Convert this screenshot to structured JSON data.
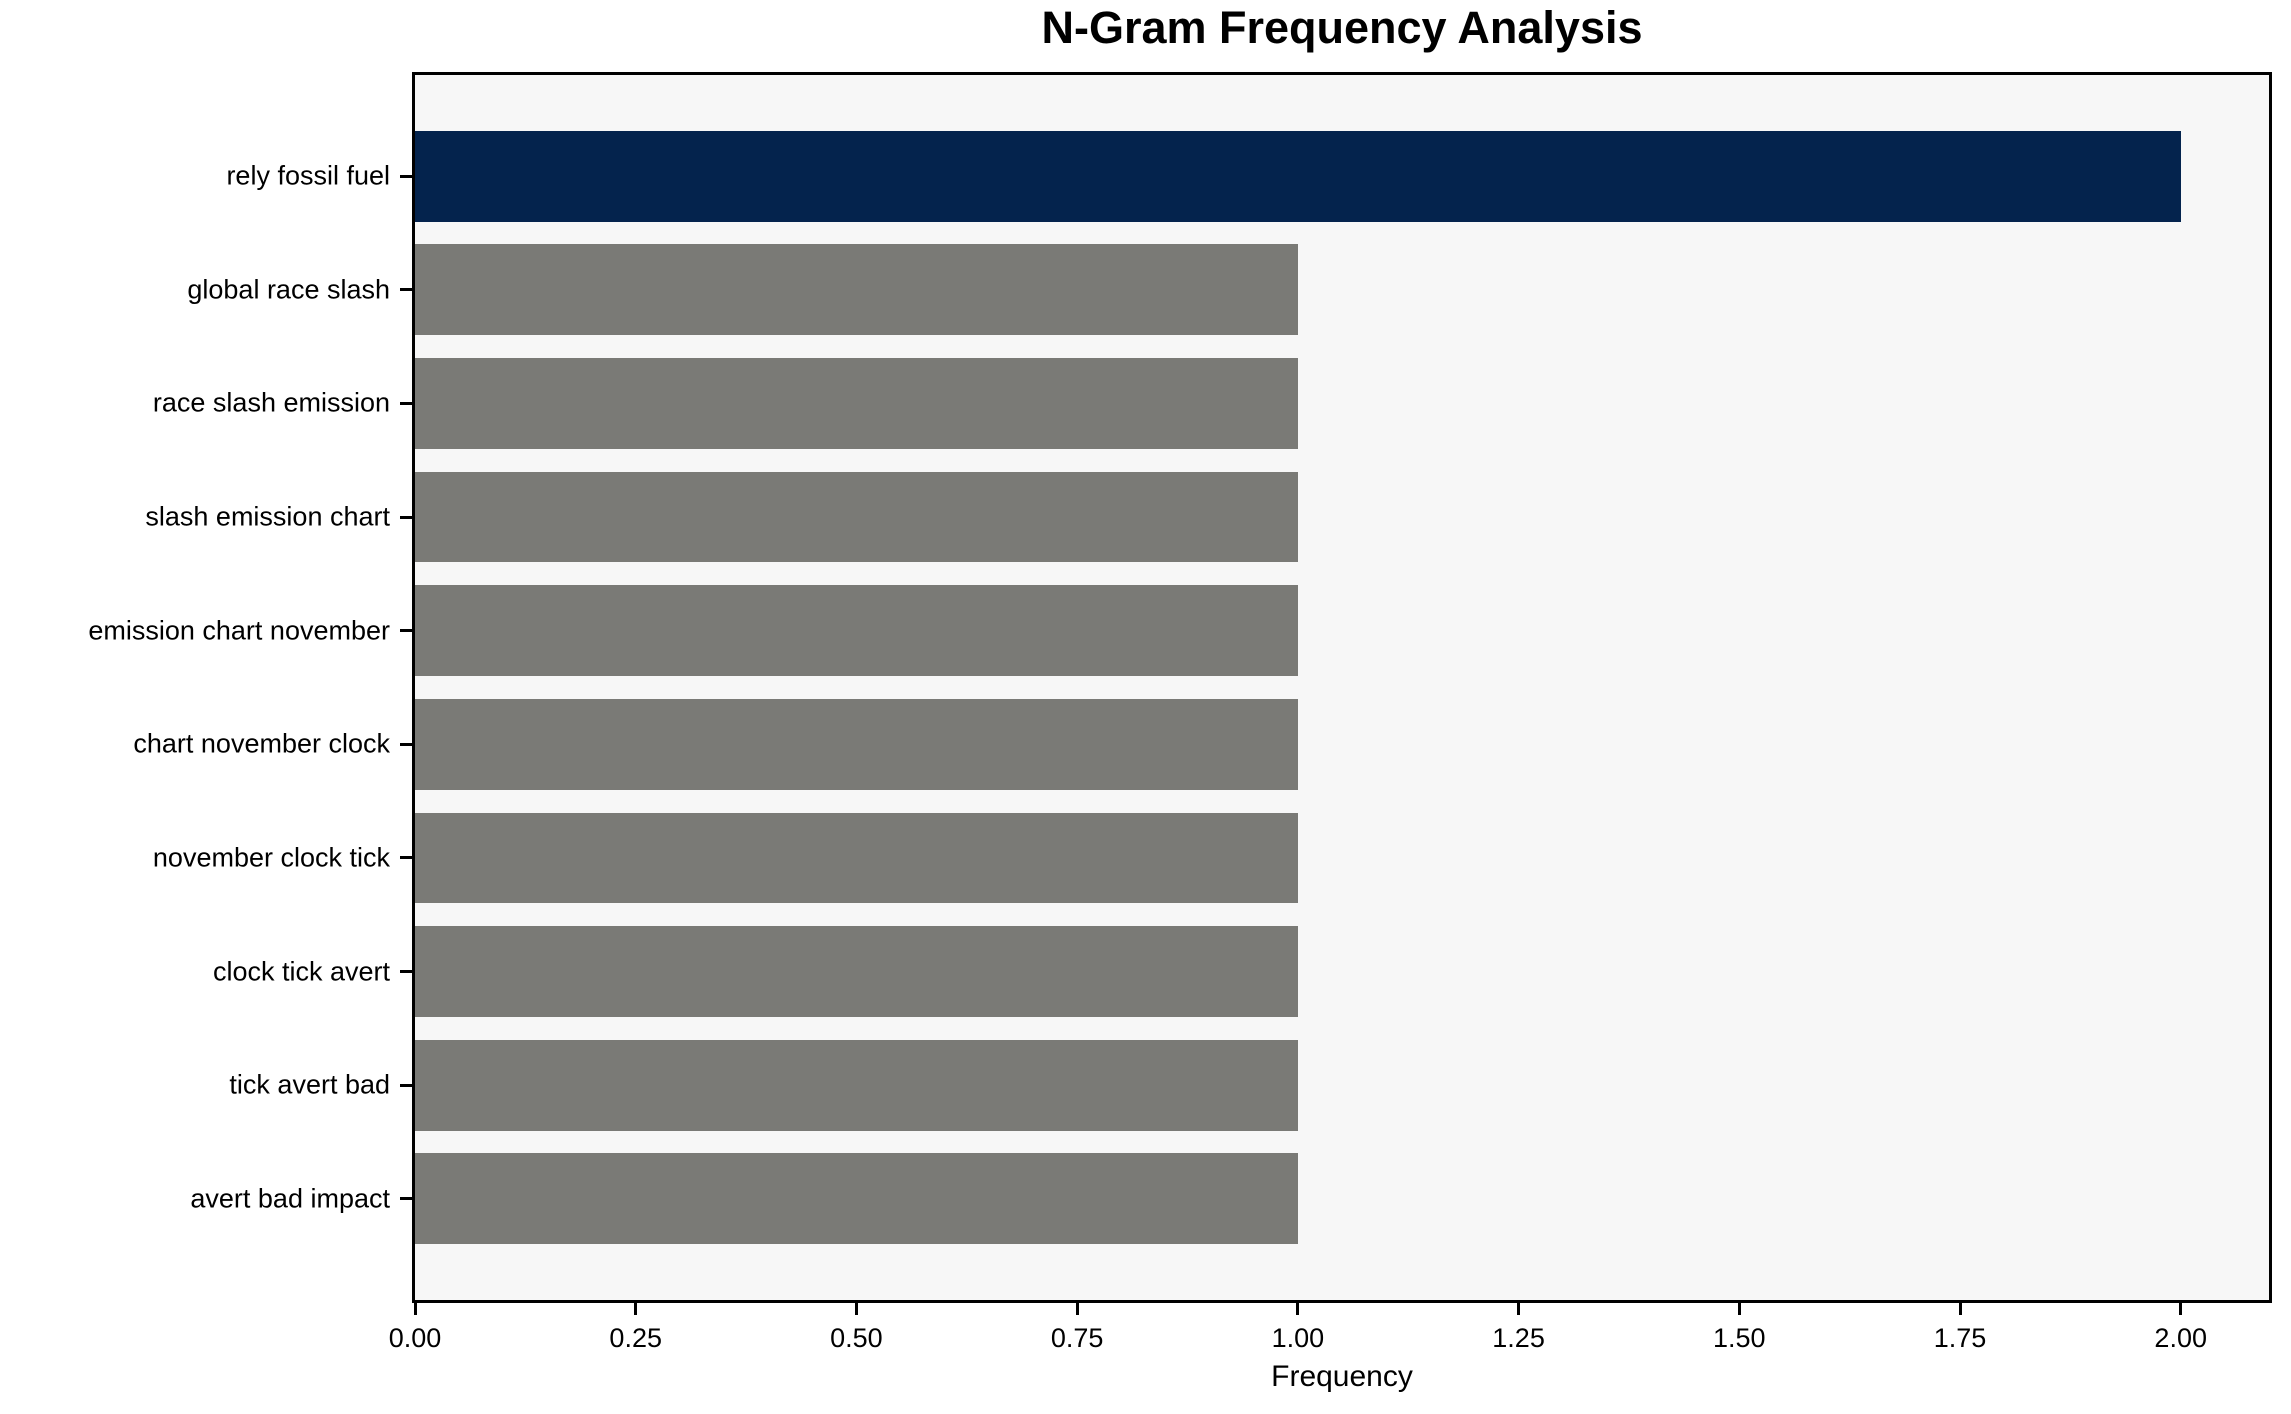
{
  "title": "N-Gram Frequency Analysis",
  "chart_data": {
    "type": "bar",
    "orientation": "horizontal",
    "title": "N-Gram Frequency Analysis",
    "xlabel": "Frequency",
    "ylabel": "",
    "categories": [
      "rely fossil fuel",
      "global race slash",
      "race slash emission",
      "slash emission chart",
      "emission chart november",
      "chart november clock",
      "november clock tick",
      "clock tick avert",
      "tick avert bad",
      "avert bad impact"
    ],
    "values": [
      2,
      1,
      1,
      1,
      1,
      1,
      1,
      1,
      1,
      1
    ],
    "bar_colors": [
      "#04234d",
      "#7a7a76",
      "#7a7a76",
      "#7a7a76",
      "#7a7a76",
      "#7a7a76",
      "#7a7a76",
      "#7a7a76",
      "#7a7a76",
      "#7a7a76"
    ],
    "xlim": [
      0,
      2.1
    ],
    "xtick_values": [
      0,
      0.25,
      0.5,
      0.75,
      1.0,
      1.25,
      1.5,
      1.75,
      2.0
    ],
    "xtick_labels": [
      "0.00",
      "0.25",
      "0.50",
      "0.75",
      "1.00",
      "1.25",
      "1.50",
      "1.75",
      "2.00"
    ],
    "grid": false,
    "legend": false,
    "colors": {
      "highlight_bar": "#04234d",
      "default_bar": "#7a7a76",
      "plot_background": "#f7f7f7",
      "figure_background": "#ffffff",
      "spine": "#000000",
      "text": "#000000"
    }
  }
}
